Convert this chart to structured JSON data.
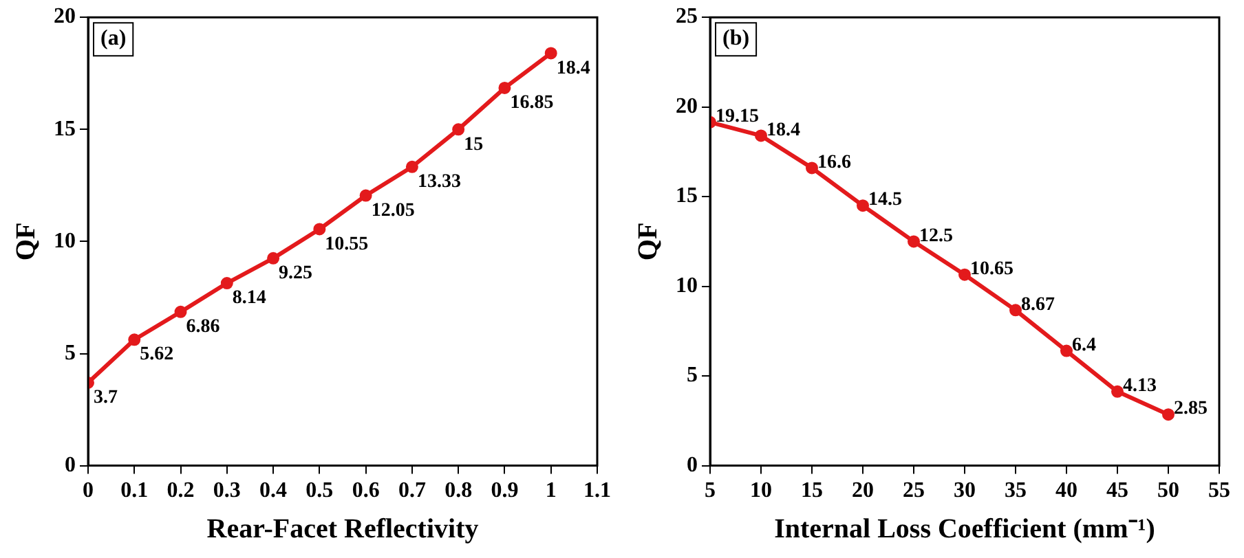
{
  "chart_data": [
    {
      "type": "line",
      "annotations": [
        "(a)"
      ],
      "xlabel": "Rear-Facet Reflectivity",
      "ylabel": "QF",
      "x": [
        0,
        0.1,
        0.2,
        0.3,
        0.4,
        0.5,
        0.6,
        0.7,
        0.8,
        0.9,
        1
      ],
      "series": [
        {
          "color": "#e31a1c",
          "values": [
            3.7,
            5.62,
            6.86,
            8.14,
            9.25,
            10.55,
            12.05,
            13.33,
            15,
            16.85,
            18.4
          ]
        }
      ],
      "xlim": [
        0,
        1.1
      ],
      "xticks": [
        0,
        0.1,
        0.2,
        0.3,
        0.4,
        0.5,
        0.6,
        0.7,
        0.8,
        0.9,
        1,
        1.1
      ],
      "ylim": [
        0,
        20
      ],
      "yticks": [
        0,
        5,
        10,
        15,
        20
      ],
      "grid": false,
      "legend": false,
      "marker": "circle",
      "line_style": "solid",
      "data_labels": true
    },
    {
      "type": "line",
      "annotations": [
        "(b)"
      ],
      "xlabel": "Internal Loss Coefficient (mm⁻¹)",
      "ylabel": "QF",
      "x": [
        5,
        10,
        15,
        20,
        25,
        30,
        35,
        40,
        45,
        50
      ],
      "series": [
        {
          "color": "#e31a1c",
          "values": [
            19.15,
            18.4,
            16.6,
            14.5,
            12.5,
            10.65,
            8.67,
            6.4,
            4.13,
            2.85
          ]
        }
      ],
      "xlim": [
        5,
        55
      ],
      "xticks": [
        5,
        10,
        15,
        20,
        25,
        30,
        35,
        40,
        45,
        50,
        55
      ],
      "ylim": [
        0,
        25
      ],
      "yticks": [
        0,
        5,
        10,
        15,
        20,
        25
      ],
      "grid": false,
      "legend": false,
      "marker": "circle",
      "line_style": "solid",
      "data_labels": true
    }
  ]
}
